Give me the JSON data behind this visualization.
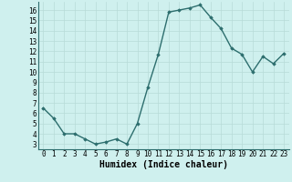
{
  "x": [
    0,
    1,
    2,
    3,
    4,
    5,
    6,
    7,
    8,
    9,
    10,
    11,
    12,
    13,
    14,
    15,
    16,
    17,
    18,
    19,
    20,
    21,
    22,
    23
  ],
  "y": [
    6.5,
    5.5,
    4.0,
    4.0,
    3.5,
    3.0,
    3.2,
    3.5,
    3.0,
    5.0,
    8.5,
    11.7,
    15.8,
    16.0,
    16.2,
    16.5,
    15.3,
    14.2,
    12.3,
    11.7,
    10.0,
    11.5,
    10.8,
    11.8
  ],
  "line_color": "#2d6e6e",
  "marker": "D",
  "markersize": 1.8,
  "linewidth": 1.0,
  "xlabel": "Humidex (Indice chaleur)",
  "xlabel_fontsize": 7,
  "xlim": [
    -0.5,
    23.5
  ],
  "ylim": [
    2.5,
    16.8
  ],
  "yticks": [
    3,
    4,
    5,
    6,
    7,
    8,
    9,
    10,
    11,
    12,
    13,
    14,
    15,
    16
  ],
  "xticks": [
    0,
    1,
    2,
    3,
    4,
    5,
    6,
    7,
    8,
    9,
    10,
    11,
    12,
    13,
    14,
    15,
    16,
    17,
    18,
    19,
    20,
    21,
    22,
    23
  ],
  "tick_fontsize": 5.5,
  "bg_color": "#cff0ee",
  "grid_color": "#b8dbd8",
  "grid_linewidth": 0.5,
  "spine_color": "#2d6e6e"
}
